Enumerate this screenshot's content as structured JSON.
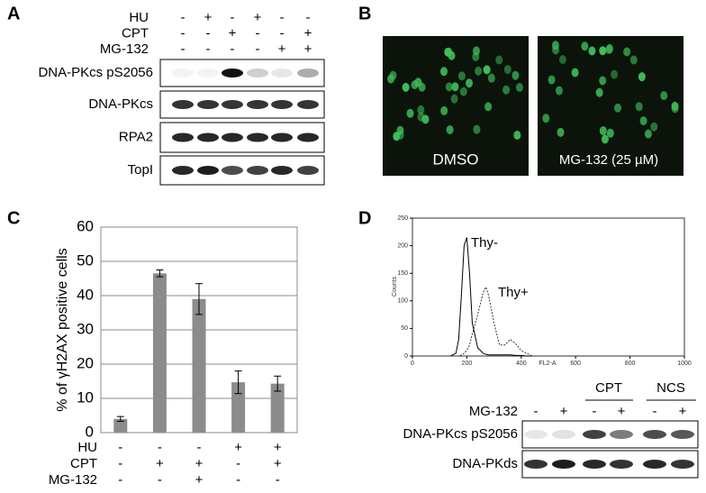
{
  "panel_labels": [
    "A",
    "B",
    "C",
    "D"
  ],
  "panel_a": {
    "conditions": [
      {
        "name": "HU",
        "signs": [
          "-",
          "+",
          "-",
          "+",
          "-",
          "-"
        ]
      },
      {
        "name": "CPT",
        "signs": [
          "-",
          "-",
          "+",
          "-",
          "-",
          "+"
        ]
      },
      {
        "name": "MG-132",
        "signs": [
          "-",
          "-",
          "-",
          "-",
          "+",
          "+"
        ]
      }
    ],
    "blots": [
      "DNA-PKcs pS2056",
      "DNA-PKcs",
      "RPA2",
      "TopI"
    ]
  },
  "panel_b": {
    "captions": [
      "DMSO",
      "MG-132 (25 µM)"
    ]
  },
  "chart_data": [
    {
      "type": "bar",
      "ylabel": "% of γH2AX positive cells",
      "categories": [
        null,
        null,
        null,
        null,
        null
      ],
      "values": [
        4,
        46.5,
        39,
        14.7,
        14.3
      ],
      "errors": [
        0.7,
        1,
        4.5,
        3.3,
        2.2
      ],
      "color": "#8c8c8c",
      "ylim": [
        0,
        60
      ],
      "yticks": [
        0,
        10,
        20,
        30,
        40,
        50,
        60
      ],
      "grid": true,
      "conditions": [
        {
          "name": "HU",
          "signs": [
            "-",
            "-",
            "-",
            "+",
            "+"
          ]
        },
        {
          "name": "CPT",
          "signs": [
            "-",
            "+",
            "+",
            "-",
            "+"
          ]
        },
        {
          "name": "MG-132",
          "signs": [
            "-",
            "-",
            "+",
            "-",
            "-"
          ]
        }
      ]
    },
    {
      "type": "line",
      "xlabel": "FL2-A",
      "ylabel": "Counts",
      "x": [
        140,
        160,
        170,
        180,
        190,
        200,
        210,
        220,
        240,
        260,
        270,
        280,
        300,
        320,
        340,
        360,
        380,
        400,
        420,
        440
      ],
      "series": [
        {
          "name": "Thy-",
          "color": "#000000",
          "values": [
            0,
            5,
            30,
            110,
            200,
            215,
            150,
            60,
            15,
            5,
            3,
            2,
            2,
            2,
            2,
            2,
            1,
            1,
            0,
            0
          ]
        },
        {
          "name": "Thy+",
          "color": "#333333",
          "values": [
            0,
            0,
            0,
            2,
            5,
            10,
            20,
            40,
            75,
            115,
            125,
            110,
            60,
            20,
            20,
            30,
            22,
            10,
            5,
            0
          ]
        }
      ],
      "xlim": [
        0,
        1000
      ],
      "xticks": [
        0,
        200,
        400,
        600,
        800,
        1000
      ],
      "ylim": [
        0,
        250
      ],
      "yticks": [
        0,
        50,
        100,
        150,
        200,
        250
      ]
    }
  ],
  "panel_d": {
    "groups": [
      "CPT",
      "NCS"
    ],
    "condition": {
      "name": "MG-132",
      "signs": [
        "-",
        "+",
        "-",
        "+",
        "-",
        "+"
      ]
    },
    "blots": [
      "DNA-PKcs pS2056",
      "DNA-PKds"
    ]
  }
}
